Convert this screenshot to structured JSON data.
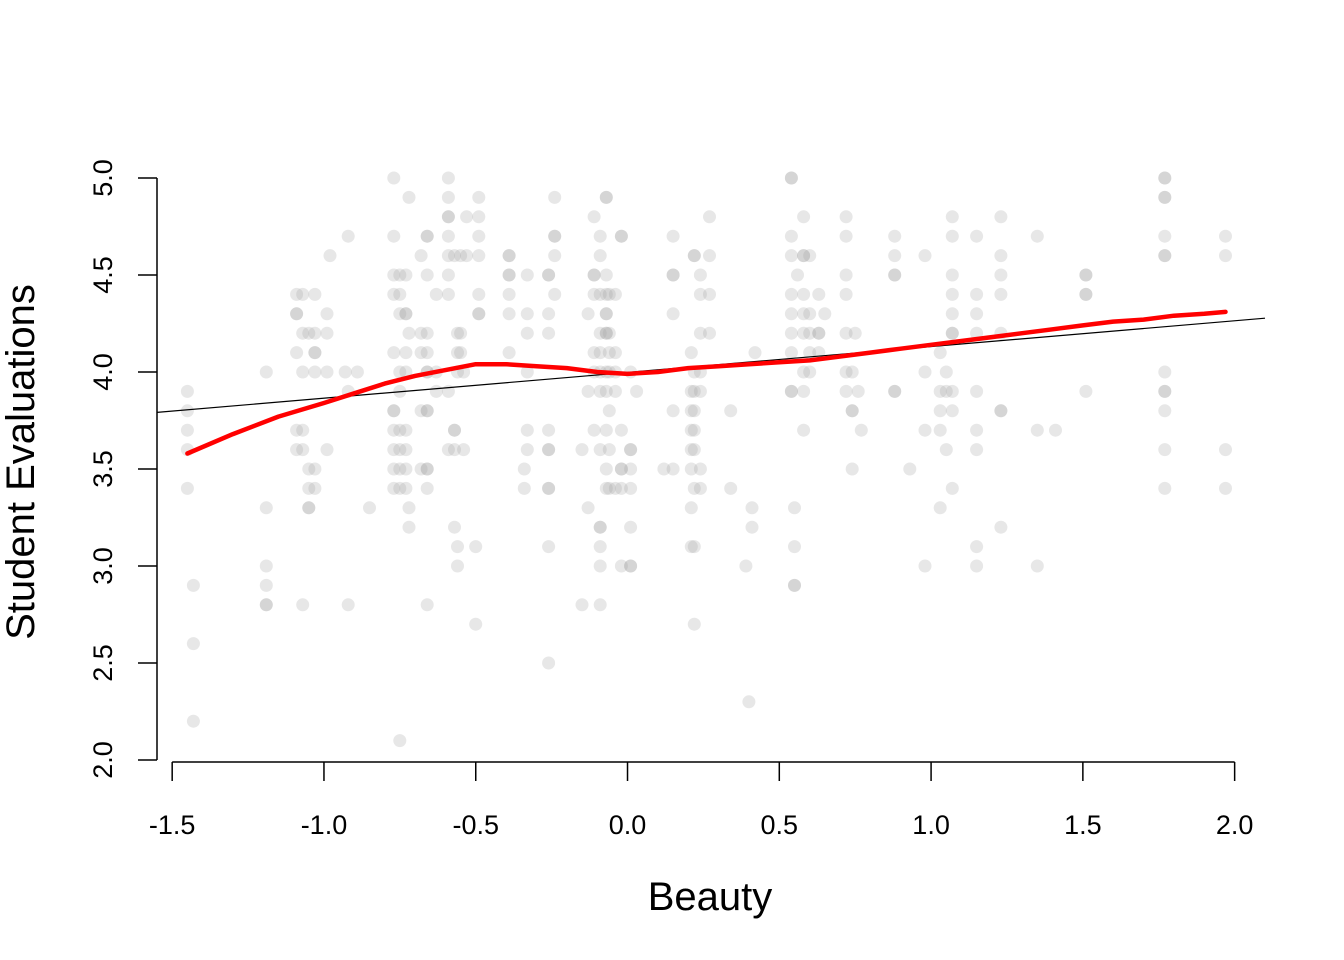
{
  "chart_data": {
    "type": "scatter",
    "title": "",
    "xlabel": "Beauty",
    "ylabel": "Student Evaluations",
    "xlim": [
      -1.55,
      2.1
    ],
    "ylim": [
      2.0,
      5.0
    ],
    "x_ticks": [
      -1.5,
      -1.0,
      -0.5,
      0.0,
      0.5,
      1.0,
      1.5,
      2.0
    ],
    "x_tick_labels": [
      "-1.5",
      "-1.0",
      "-0.5",
      "0.0",
      "0.5",
      "1.0",
      "1.5",
      "2.0"
    ],
    "y_ticks": [
      2.0,
      2.5,
      3.0,
      3.5,
      4.0,
      4.5,
      5.0
    ],
    "y_tick_labels": [
      "2.0",
      "2.5",
      "3.0",
      "3.5",
      "4.0",
      "4.5",
      "5.0"
    ],
    "grid": false,
    "colors": {
      "points": "#9e9e9e",
      "smooth": "#ff0000",
      "fit": "#000000"
    },
    "points": [
      [
        -1.45,
        3.9
      ],
      [
        -1.45,
        3.8
      ],
      [
        -1.45,
        3.7
      ],
      [
        -1.45,
        3.6
      ],
      [
        -1.45,
        3.4
      ],
      [
        -1.43,
        2.9
      ],
      [
        -1.43,
        2.6
      ],
      [
        -1.43,
        2.2
      ],
      [
        -1.19,
        4.0
      ],
      [
        -1.19,
        3.3
      ],
      [
        -1.19,
        3.0
      ],
      [
        -1.19,
        2.9
      ],
      [
        -1.19,
        2.8
      ],
      [
        -1.19,
        2.8
      ],
      [
        -1.09,
        4.4
      ],
      [
        -1.09,
        4.3
      ],
      [
        -1.09,
        4.3
      ],
      [
        -1.09,
        4.1
      ],
      [
        -1.09,
        3.7
      ],
      [
        -1.09,
        3.6
      ],
      [
        -1.07,
        4.4
      ],
      [
        -1.07,
        4.2
      ],
      [
        -1.07,
        4.0
      ],
      [
        -1.07,
        3.7
      ],
      [
        -1.07,
        3.6
      ],
      [
        -1.07,
        2.8
      ],
      [
        -1.05,
        4.2
      ],
      [
        -1.05,
        3.5
      ],
      [
        -1.05,
        3.4
      ],
      [
        -1.05,
        3.3
      ],
      [
        -1.05,
        3.3
      ],
      [
        -1.03,
        4.4
      ],
      [
        -1.03,
        4.2
      ],
      [
        -1.03,
        4.1
      ],
      [
        -1.03,
        4.1
      ],
      [
        -1.03,
        4.0
      ],
      [
        -1.03,
        3.5
      ],
      [
        -1.03,
        3.4
      ],
      [
        -0.99,
        4.3
      ],
      [
        -0.99,
        4.2
      ],
      [
        -0.99,
        4.0
      ],
      [
        -0.99,
        3.6
      ],
      [
        -0.98,
        4.6
      ],
      [
        -0.93,
        4.0
      ],
      [
        -0.92,
        4.7
      ],
      [
        -0.92,
        3.9
      ],
      [
        -0.92,
        2.8
      ],
      [
        -0.89,
        4.0
      ],
      [
        -0.85,
        3.3
      ],
      [
        -0.77,
        5.0
      ],
      [
        -0.77,
        4.7
      ],
      [
        -0.77,
        4.5
      ],
      [
        -0.77,
        4.4
      ],
      [
        -0.77,
        4.1
      ],
      [
        -0.77,
        3.8
      ],
      [
        -0.77,
        3.8
      ],
      [
        -0.77,
        3.7
      ],
      [
        -0.77,
        3.6
      ],
      [
        -0.77,
        3.5
      ],
      [
        -0.77,
        3.4
      ],
      [
        -0.75,
        4.5
      ],
      [
        -0.75,
        4.4
      ],
      [
        -0.75,
        4.3
      ],
      [
        -0.75,
        4.0
      ],
      [
        -0.75,
        3.9
      ],
      [
        -0.75,
        3.7
      ],
      [
        -0.75,
        3.6
      ],
      [
        -0.75,
        3.5
      ],
      [
        -0.75,
        3.4
      ],
      [
        -0.75,
        2.1
      ],
      [
        -0.73,
        4.5
      ],
      [
        -0.73,
        4.3
      ],
      [
        -0.73,
        4.3
      ],
      [
        -0.73,
        4.1
      ],
      [
        -0.73,
        4.0
      ],
      [
        -0.73,
        3.7
      ],
      [
        -0.73,
        3.6
      ],
      [
        -0.73,
        3.5
      ],
      [
        -0.73,
        3.4
      ],
      [
        -0.72,
        4.9
      ],
      [
        -0.72,
        4.2
      ],
      [
        -0.72,
        3.3
      ],
      [
        -0.72,
        3.2
      ],
      [
        -0.68,
        4.6
      ],
      [
        -0.68,
        4.2
      ],
      [
        -0.68,
        4.1
      ],
      [
        -0.68,
        3.8
      ],
      [
        -0.68,
        3.5
      ],
      [
        -0.66,
        4.7
      ],
      [
        -0.66,
        4.7
      ],
      [
        -0.66,
        4.5
      ],
      [
        -0.66,
        4.2
      ],
      [
        -0.66,
        4.1
      ],
      [
        -0.66,
        4.0
      ],
      [
        -0.66,
        4.0
      ],
      [
        -0.66,
        3.8
      ],
      [
        -0.66,
        3.8
      ],
      [
        -0.66,
        3.5
      ],
      [
        -0.66,
        3.5
      ],
      [
        -0.66,
        3.4
      ],
      [
        -0.66,
        2.8
      ],
      [
        -0.63,
        4.4
      ],
      [
        -0.63,
        4.0
      ],
      [
        -0.63,
        3.9
      ],
      [
        -0.59,
        5.0
      ],
      [
        -0.59,
        4.9
      ],
      [
        -0.59,
        4.8
      ],
      [
        -0.59,
        4.8
      ],
      [
        -0.59,
        4.7
      ],
      [
        -0.59,
        4.6
      ],
      [
        -0.59,
        4.5
      ],
      [
        -0.59,
        4.4
      ],
      [
        -0.59,
        3.9
      ],
      [
        -0.59,
        3.6
      ],
      [
        -0.57,
        4.6
      ],
      [
        -0.57,
        3.7
      ],
      [
        -0.57,
        3.7
      ],
      [
        -0.57,
        3.6
      ],
      [
        -0.57,
        3.2
      ],
      [
        -0.56,
        4.2
      ],
      [
        -0.56,
        4.1
      ],
      [
        -0.56,
        4.0
      ],
      [
        -0.56,
        3.1
      ],
      [
        -0.56,
        3.0
      ],
      [
        -0.55,
        4.6
      ],
      [
        -0.55,
        4.2
      ],
      [
        -0.55,
        4.1
      ],
      [
        -0.54,
        4.0
      ],
      [
        -0.54,
        3.6
      ],
      [
        -0.53,
        4.8
      ],
      [
        -0.53,
        4.6
      ],
      [
        -0.5,
        3.1
      ],
      [
        -0.5,
        2.7
      ],
      [
        -0.49,
        4.9
      ],
      [
        -0.49,
        4.8
      ],
      [
        -0.49,
        4.7
      ],
      [
        -0.49,
        4.6
      ],
      [
        -0.49,
        4.4
      ],
      [
        -0.49,
        4.3
      ],
      [
        -0.49,
        4.3
      ],
      [
        -0.39,
        4.6
      ],
      [
        -0.39,
        4.6
      ],
      [
        -0.39,
        4.5
      ],
      [
        -0.39,
        4.5
      ],
      [
        -0.39,
        4.4
      ],
      [
        -0.39,
        4.3
      ],
      [
        -0.39,
        4.1
      ],
      [
        -0.33,
        4.5
      ],
      [
        -0.33,
        4.3
      ],
      [
        -0.33,
        4.2
      ],
      [
        -0.33,
        4.0
      ],
      [
        -0.33,
        3.7
      ],
      [
        -0.33,
        3.6
      ],
      [
        -0.34,
        3.5
      ],
      [
        -0.34,
        3.4
      ],
      [
        -0.26,
        4.5
      ],
      [
        -0.26,
        4.5
      ],
      [
        -0.26,
        4.3
      ],
      [
        -0.26,
        4.2
      ],
      [
        -0.26,
        3.7
      ],
      [
        -0.26,
        3.6
      ],
      [
        -0.26,
        3.6
      ],
      [
        -0.26,
        3.4
      ],
      [
        -0.26,
        3.4
      ],
      [
        -0.26,
        3.1
      ],
      [
        -0.26,
        2.5
      ],
      [
        -0.24,
        4.9
      ],
      [
        -0.24,
        4.7
      ],
      [
        -0.24,
        4.7
      ],
      [
        -0.24,
        4.6
      ],
      [
        -0.24,
        4.4
      ],
      [
        -0.15,
        3.6
      ],
      [
        -0.15,
        2.8
      ],
      [
        -0.13,
        4.3
      ],
      [
        -0.13,
        3.9
      ],
      [
        -0.13,
        3.3
      ],
      [
        -0.11,
        4.8
      ],
      [
        -0.11,
        4.5
      ],
      [
        -0.11,
        4.5
      ],
      [
        -0.11,
        4.4
      ],
      [
        -0.11,
        4.1
      ],
      [
        -0.11,
        4.0
      ],
      [
        -0.11,
        3.7
      ],
      [
        -0.09,
        4.7
      ],
      [
        -0.09,
        4.6
      ],
      [
        -0.09,
        4.4
      ],
      [
        -0.09,
        4.2
      ],
      [
        -0.09,
        4.1
      ],
      [
        -0.09,
        4.0
      ],
      [
        -0.09,
        3.9
      ],
      [
        -0.09,
        3.6
      ],
      [
        -0.09,
        3.2
      ],
      [
        -0.09,
        3.2
      ],
      [
        -0.09,
        3.1
      ],
      [
        -0.09,
        3.0
      ],
      [
        -0.09,
        2.8
      ],
      [
        -0.07,
        4.9
      ],
      [
        -0.07,
        4.9
      ],
      [
        -0.07,
        4.5
      ],
      [
        -0.07,
        4.4
      ],
      [
        -0.07,
        4.3
      ],
      [
        -0.07,
        4.3
      ],
      [
        -0.07,
        4.2
      ],
      [
        -0.07,
        4.2
      ],
      [
        -0.07,
        4.0
      ],
      [
        -0.07,
        3.9
      ],
      [
        -0.07,
        3.7
      ],
      [
        -0.07,
        3.5
      ],
      [
        -0.07,
        3.4
      ],
      [
        -0.06,
        4.4
      ],
      [
        -0.06,
        4.2
      ],
      [
        -0.06,
        4.1
      ],
      [
        -0.06,
        4.0
      ],
      [
        -0.06,
        3.8
      ],
      [
        -0.06,
        3.6
      ],
      [
        -0.06,
        3.4
      ],
      [
        -0.04,
        4.4
      ],
      [
        -0.04,
        4.1
      ],
      [
        -0.04,
        4.0
      ],
      [
        -0.04,
        3.9
      ],
      [
        -0.04,
        3.4
      ],
      [
        -0.02,
        4.7
      ],
      [
        -0.02,
        4.7
      ],
      [
        -0.02,
        3.7
      ],
      [
        -0.02,
        3.5
      ],
      [
        -0.02,
        3.5
      ],
      [
        -0.02,
        3.4
      ],
      [
        -0.02,
        3.0
      ],
      [
        0.01,
        4.0
      ],
      [
        0.01,
        3.6
      ],
      [
        0.01,
        3.6
      ],
      [
        0.01,
        3.5
      ],
      [
        0.01,
        3.4
      ],
      [
        0.01,
        3.2
      ],
      [
        0.01,
        3.0
      ],
      [
        0.01,
        3.0
      ],
      [
        0.03,
        3.9
      ],
      [
        0.12,
        3.5
      ],
      [
        0.15,
        4.7
      ],
      [
        0.15,
        4.5
      ],
      [
        0.15,
        4.5
      ],
      [
        0.15,
        4.3
      ],
      [
        0.15,
        3.8
      ],
      [
        0.15,
        3.5
      ],
      [
        0.21,
        4.1
      ],
      [
        0.21,
        3.9
      ],
      [
        0.21,
        3.8
      ],
      [
        0.21,
        3.7
      ],
      [
        0.21,
        3.6
      ],
      [
        0.21,
        3.5
      ],
      [
        0.21,
        3.3
      ],
      [
        0.21,
        3.1
      ],
      [
        0.22,
        4.6
      ],
      [
        0.22,
        4.6
      ],
      [
        0.22,
        4.0
      ],
      [
        0.22,
        3.9
      ],
      [
        0.22,
        3.8
      ],
      [
        0.22,
        3.7
      ],
      [
        0.22,
        3.6
      ],
      [
        0.22,
        3.4
      ],
      [
        0.22,
        3.1
      ],
      [
        0.22,
        2.7
      ],
      [
        0.24,
        4.5
      ],
      [
        0.24,
        4.4
      ],
      [
        0.24,
        4.2
      ],
      [
        0.24,
        4.0
      ],
      [
        0.24,
        3.9
      ],
      [
        0.24,
        3.5
      ],
      [
        0.24,
        3.4
      ],
      [
        0.27,
        4.8
      ],
      [
        0.27,
        4.6
      ],
      [
        0.27,
        4.4
      ],
      [
        0.27,
        4.2
      ],
      [
        0.34,
        3.8
      ],
      [
        0.34,
        3.4
      ],
      [
        0.39,
        3.0
      ],
      [
        0.4,
        2.3
      ],
      [
        0.41,
        3.3
      ],
      [
        0.41,
        3.2
      ],
      [
        0.42,
        4.1
      ],
      [
        0.54,
        5.0
      ],
      [
        0.54,
        5.0
      ],
      [
        0.54,
        4.7
      ],
      [
        0.54,
        4.6
      ],
      [
        0.54,
        4.4
      ],
      [
        0.54,
        4.3
      ],
      [
        0.54,
        4.2
      ],
      [
        0.54,
        4.1
      ],
      [
        0.54,
        3.9
      ],
      [
        0.54,
        3.9
      ],
      [
        0.55,
        3.3
      ],
      [
        0.55,
        3.1
      ],
      [
        0.55,
        2.9
      ],
      [
        0.55,
        2.9
      ],
      [
        0.56,
        4.5
      ],
      [
        0.58,
        4.8
      ],
      [
        0.58,
        4.6
      ],
      [
        0.58,
        4.6
      ],
      [
        0.58,
        4.4
      ],
      [
        0.58,
        4.3
      ],
      [
        0.58,
        4.2
      ],
      [
        0.58,
        4.0
      ],
      [
        0.58,
        3.9
      ],
      [
        0.58,
        3.7
      ],
      [
        0.6,
        4.6
      ],
      [
        0.6,
        4.3
      ],
      [
        0.6,
        4.2
      ],
      [
        0.6,
        4.1
      ],
      [
        0.6,
        4.0
      ],
      [
        0.63,
        4.4
      ],
      [
        0.63,
        4.2
      ],
      [
        0.63,
        4.2
      ],
      [
        0.63,
        4.1
      ],
      [
        0.65,
        4.3
      ],
      [
        0.72,
        4.8
      ],
      [
        0.72,
        4.7
      ],
      [
        0.72,
        4.5
      ],
      [
        0.72,
        4.4
      ],
      [
        0.72,
        4.2
      ],
      [
        0.72,
        4.0
      ],
      [
        0.72,
        3.9
      ],
      [
        0.74,
        3.8
      ],
      [
        0.74,
        3.8
      ],
      [
        0.74,
        3.5
      ],
      [
        0.74,
        4.0
      ],
      [
        0.75,
        4.2
      ],
      [
        0.76,
        3.9
      ],
      [
        0.77,
        3.7
      ],
      [
        0.88,
        4.7
      ],
      [
        0.88,
        4.6
      ],
      [
        0.88,
        4.5
      ],
      [
        0.88,
        4.5
      ],
      [
        0.88,
        3.9
      ],
      [
        0.88,
        3.9
      ],
      [
        0.93,
        3.5
      ],
      [
        0.98,
        4.6
      ],
      [
        0.98,
        4.0
      ],
      [
        0.98,
        3.7
      ],
      [
        0.98,
        3.0
      ],
      [
        1.03,
        4.1
      ],
      [
        1.03,
        3.9
      ],
      [
        1.03,
        3.8
      ],
      [
        1.03,
        3.7
      ],
      [
        1.03,
        3.3
      ],
      [
        1.05,
        4.0
      ],
      [
        1.05,
        3.9
      ],
      [
        1.05,
        3.6
      ],
      [
        1.07,
        4.8
      ],
      [
        1.07,
        4.7
      ],
      [
        1.07,
        4.5
      ],
      [
        1.07,
        4.4
      ],
      [
        1.07,
        4.3
      ],
      [
        1.07,
        4.2
      ],
      [
        1.07,
        4.2
      ],
      [
        1.07,
        3.9
      ],
      [
        1.07,
        3.8
      ],
      [
        1.07,
        3.4
      ],
      [
        1.15,
        4.7
      ],
      [
        1.15,
        4.4
      ],
      [
        1.15,
        4.3
      ],
      [
        1.15,
        4.2
      ],
      [
        1.15,
        3.9
      ],
      [
        1.15,
        3.7
      ],
      [
        1.15,
        3.6
      ],
      [
        1.15,
        3.1
      ],
      [
        1.15,
        3.0
      ],
      [
        1.23,
        4.8
      ],
      [
        1.23,
        4.6
      ],
      [
        1.23,
        4.5
      ],
      [
        1.23,
        4.4
      ],
      [
        1.23,
        4.2
      ],
      [
        1.23,
        3.8
      ],
      [
        1.23,
        3.8
      ],
      [
        1.23,
        3.2
      ],
      [
        1.35,
        4.7
      ],
      [
        1.35,
        3.7
      ],
      [
        1.35,
        3.0
      ],
      [
        1.41,
        3.7
      ],
      [
        1.51,
        4.5
      ],
      [
        1.51,
        4.5
      ],
      [
        1.51,
        4.4
      ],
      [
        1.51,
        4.4
      ],
      [
        1.51,
        3.9
      ],
      [
        1.77,
        5.0
      ],
      [
        1.77,
        5.0
      ],
      [
        1.77,
        4.9
      ],
      [
        1.77,
        4.9
      ],
      [
        1.77,
        4.7
      ],
      [
        1.77,
        4.6
      ],
      [
        1.77,
        4.6
      ],
      [
        1.77,
        4.0
      ],
      [
        1.77,
        3.9
      ],
      [
        1.77,
        3.9
      ],
      [
        1.77,
        3.8
      ],
      [
        1.77,
        3.6
      ],
      [
        1.77,
        3.4
      ],
      [
        1.97,
        4.7
      ],
      [
        1.97,
        4.6
      ],
      [
        1.97,
        3.6
      ],
      [
        1.97,
        3.4
      ]
    ],
    "linear_fit": {
      "intercept": 3.998,
      "slope": 0.133
    },
    "smooth_curve": [
      [
        -1.45,
        3.58
      ],
      [
        -1.3,
        3.68
      ],
      [
        -1.15,
        3.77
      ],
      [
        -1.0,
        3.84
      ],
      [
        -0.9,
        3.89
      ],
      [
        -0.8,
        3.94
      ],
      [
        -0.7,
        3.98
      ],
      [
        -0.6,
        4.01
      ],
      [
        -0.5,
        4.04
      ],
      [
        -0.4,
        4.04
      ],
      [
        -0.3,
        4.03
      ],
      [
        -0.2,
        4.02
      ],
      [
        -0.1,
        4.0
      ],
      [
        0.0,
        3.99
      ],
      [
        0.1,
        4.0
      ],
      [
        0.2,
        4.02
      ],
      [
        0.3,
        4.03
      ],
      [
        0.4,
        4.04
      ],
      [
        0.5,
        4.05
      ],
      [
        0.6,
        4.06
      ],
      [
        0.7,
        4.08
      ],
      [
        0.8,
        4.1
      ],
      [
        0.9,
        4.12
      ],
      [
        1.0,
        4.14
      ],
      [
        1.1,
        4.16
      ],
      [
        1.2,
        4.18
      ],
      [
        1.3,
        4.2
      ],
      [
        1.4,
        4.22
      ],
      [
        1.5,
        4.24
      ],
      [
        1.6,
        4.26
      ],
      [
        1.7,
        4.27
      ],
      [
        1.8,
        4.29
      ],
      [
        1.9,
        4.3
      ],
      [
        1.97,
        4.31
      ]
    ]
  }
}
